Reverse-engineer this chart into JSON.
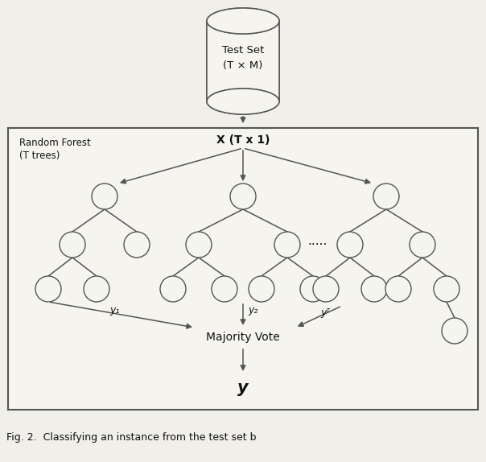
{
  "bg_color": "#f0efea",
  "node_facecolor": "#f5f5f0",
  "node_edgecolor": "#555555",
  "arrow_color": "#555555",
  "text_color": "#111111",
  "box_facecolor": "#f5f4ef",
  "cyl_facecolor": "#f5f4ef",
  "title_text": "Test Set\n(T × M)",
  "x_label": "X (T x 1)",
  "majority_label": "Majority Vote",
  "y_out_label": "y",
  "rf_label_line1": "Random Forest",
  "rf_label_line2": "(T trees)",
  "dots_label": ".....",
  "y1_label": "y₁",
  "y2_label": "y₂",
  "yT_label": "yᵀ",
  "fig_caption": "Fig. 2.  Classifying an instance from the test set b",
  "figsize": [
    6.04,
    5.74
  ],
  "dpi": 100
}
